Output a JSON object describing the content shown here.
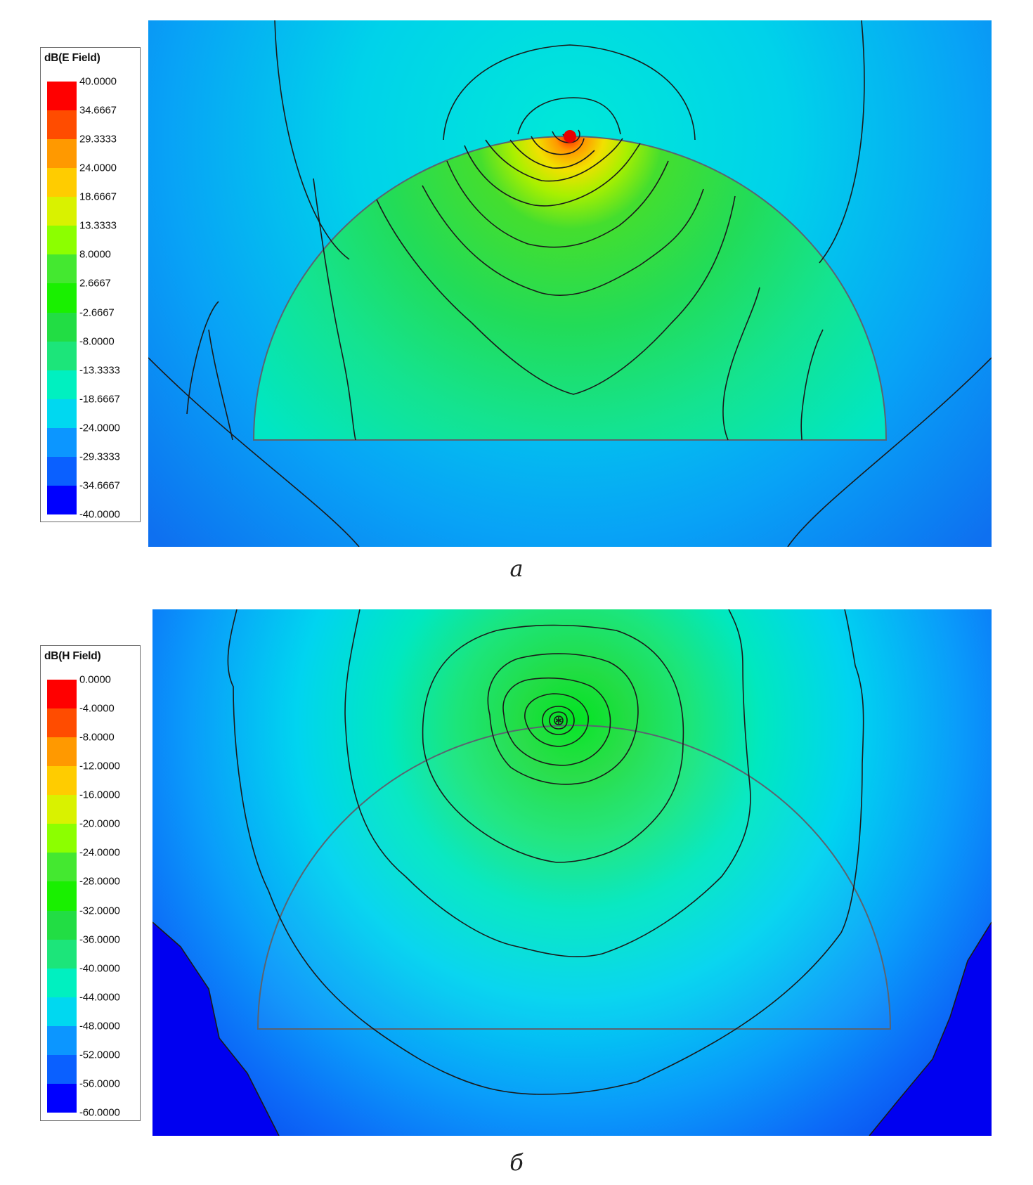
{
  "colors": {
    "scale": [
      "#ff0000",
      "#ff4c00",
      "#ff9900",
      "#ffcc00",
      "#d9f200",
      "#8cff00",
      "#44e830",
      "#19f000",
      "#22dd44",
      "#1ce57a",
      "#00f0c0",
      "#00d8f0",
      "#0c96ff",
      "#0a60ff",
      "#0000ff"
    ],
    "contour": "#1a1a1a",
    "outline": "#5a6470"
  },
  "panels": [
    {
      "legend": {
        "title": "dB(E Field)",
        "labels": [
          "40.0000",
          "34.6667",
          "29.3333",
          "24.0000",
          "18.6667",
          "13.3333",
          "8.0000",
          "2.6667",
          "-2.6667",
          "-8.0000",
          "-13.3333",
          "-18.6667",
          "-24.0000",
          "-29.3333",
          "-34.6667",
          "-40.0000"
        ]
      },
      "caption": "а"
    },
    {
      "legend": {
        "title": "dB(H Field)",
        "labels": [
          "0.0000",
          "-4.0000",
          "-8.0000",
          "-12.0000",
          "-16.0000",
          "-20.0000",
          "-24.0000",
          "-28.0000",
          "-32.0000",
          "-36.0000",
          "-40.0000",
          "-44.0000",
          "-48.0000",
          "-52.0000",
          "-56.0000",
          "-60.0000"
        ]
      },
      "caption": "б"
    }
  ]
}
